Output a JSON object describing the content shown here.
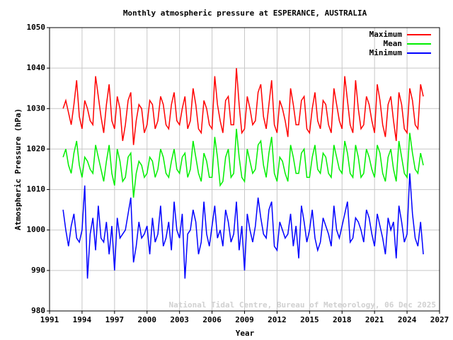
{
  "chart_data": {
    "type": "line",
    "title": "Monthly atmospheric pressure at ESPERANCE, AUSTRALIA",
    "xlabel": "Year",
    "ylabel": "Atmospheric Pressure (hPa)",
    "annotation": "National Tidal Centre, Bureau of Meteorology, 06 Dec 2025",
    "x": [
      1992.25,
      1992.5,
      1992.75,
      1993,
      1993.25,
      1993.5,
      1993.75,
      1994,
      1994.25,
      1994.5,
      1994.75,
      1995,
      1995.25,
      1995.5,
      1995.75,
      1996,
      1996.25,
      1996.5,
      1996.75,
      1997,
      1997.25,
      1997.5,
      1997.75,
      1998,
      1998.25,
      1998.5,
      1998.75,
      1999,
      1999.25,
      1999.5,
      1999.75,
      2000,
      2000.25,
      2000.5,
      2000.75,
      2001,
      2001.25,
      2001.5,
      2001.75,
      2002,
      2002.25,
      2002.5,
      2002.75,
      2003,
      2003.25,
      2003.5,
      2003.75,
      2004,
      2004.25,
      2004.5,
      2004.75,
      2005,
      2005.25,
      2005.5,
      2005.75,
      2006,
      2006.25,
      2006.5,
      2006.75,
      2007,
      2007.25,
      2007.5,
      2007.75,
      2008,
      2008.25,
      2008.5,
      2008.75,
      2009,
      2009.25,
      2009.5,
      2009.75,
      2010,
      2010.25,
      2010.5,
      2010.75,
      2011,
      2011.25,
      2011.5,
      2011.75,
      2012,
      2012.25,
      2012.5,
      2012.75,
      2013,
      2013.25,
      2013.5,
      2013.75,
      2014,
      2014.25,
      2014.5,
      2014.75,
      2015,
      2015.25,
      2015.5,
      2015.75,
      2016,
      2016.25,
      2016.5,
      2016.75,
      2017,
      2017.25,
      2017.5,
      2017.75,
      2018,
      2018.25,
      2018.5,
      2018.75,
      2019,
      2019.25,
      2019.5,
      2019.75,
      2020,
      2020.25,
      2020.5,
      2020.75,
      2021,
      2021.25,
      2021.5,
      2021.75,
      2022,
      2022.25,
      2022.5,
      2022.75,
      2023,
      2023.25,
      2023.5,
      2023.75,
      2024,
      2024.25,
      2024.5,
      2024.75,
      2025,
      2025.25,
      2025.5
    ],
    "series": [
      {
        "name": "Maximum",
        "color": "#ff0000",
        "values": [
          1030,
          1032,
          1029,
          1026,
          1031,
          1037,
          1028,
          1025,
          1032,
          1030,
          1027,
          1026,
          1038,
          1033,
          1028,
          1024,
          1031,
          1036,
          1027,
          1025,
          1033,
          1030,
          1022,
          1026,
          1032,
          1034,
          1021,
          1027,
          1031,
          1030,
          1024,
          1026,
          1032,
          1031,
          1025,
          1027,
          1033,
          1031,
          1026,
          1025,
          1031,
          1034,
          1027,
          1026,
          1030,
          1033,
          1025,
          1027,
          1035,
          1031,
          1025,
          1024,
          1032,
          1030,
          1026,
          1025,
          1038,
          1031,
          1027,
          1024,
          1032,
          1033,
          1026,
          1026,
          1040,
          1031,
          1024,
          1025,
          1033,
          1030,
          1026,
          1027,
          1034,
          1036,
          1028,
          1025,
          1031,
          1037,
          1026,
          1024,
          1032,
          1030,
          1027,
          1023,
          1035,
          1031,
          1026,
          1026,
          1032,
          1033,
          1025,
          1024,
          1030,
          1034,
          1027,
          1025,
          1032,
          1031,
          1026,
          1024,
          1035,
          1031,
          1027,
          1025,
          1038,
          1032,
          1026,
          1024,
          1037,
          1030,
          1025,
          1026,
          1033,
          1031,
          1027,
          1024,
          1036,
          1032,
          1026,
          1023,
          1031,
          1033,
          1027,
          1022,
          1034,
          1031,
          1025,
          1024,
          1035,
          1032,
          1026,
          1025,
          1036,
          1033
        ]
      },
      {
        "name": "Mean",
        "color": "#00ee00",
        "values": [
          1018,
          1020,
          1016,
          1014,
          1019,
          1022,
          1016,
          1013,
          1018,
          1017,
          1015,
          1014,
          1021,
          1018,
          1015,
          1012,
          1017,
          1021,
          1014,
          1011,
          1020,
          1017,
          1012,
          1013,
          1018,
          1019,
          1008,
          1014,
          1017,
          1016,
          1013,
          1014,
          1018,
          1017,
          1013,
          1015,
          1020,
          1018,
          1014,
          1013,
          1017,
          1020,
          1015,
          1014,
          1018,
          1019,
          1013,
          1015,
          1022,
          1018,
          1014,
          1012,
          1019,
          1017,
          1013,
          1013,
          1023,
          1018,
          1011,
          1012,
          1018,
          1020,
          1013,
          1014,
          1025,
          1018,
          1013,
          1012,
          1020,
          1017,
          1014,
          1015,
          1021,
          1022,
          1016,
          1013,
          1019,
          1023,
          1014,
          1012,
          1018,
          1017,
          1014,
          1012,
          1021,
          1018,
          1014,
          1014,
          1019,
          1020,
          1013,
          1013,
          1018,
          1021,
          1015,
          1014,
          1019,
          1018,
          1014,
          1013,
          1021,
          1018,
          1015,
          1014,
          1022,
          1019,
          1014,
          1013,
          1021,
          1018,
          1013,
          1014,
          1020,
          1018,
          1015,
          1013,
          1021,
          1019,
          1014,
          1012,
          1018,
          1020,
          1015,
          1012,
          1022,
          1018,
          1014,
          1013,
          1024,
          1019,
          1015,
          1014,
          1019,
          1016
        ]
      },
      {
        "name": "Minimum",
        "color": "#0000ff",
        "values": [
          1005,
          1000,
          996,
          1001,
          1004,
          998,
          997,
          1000,
          1011,
          988,
          999,
          1003,
          995,
          1006,
          998,
          997,
          1002,
          994,
          1001,
          990,
          1003,
          998,
          999,
          1000,
          1004,
          1008,
          992,
          996,
          1002,
          998,
          999,
          1001,
          994,
          1003,
          997,
          999,
          1006,
          996,
          998,
          1002,
          995,
          1007,
          1000,
          998,
          1004,
          988,
          999,
          1000,
          1005,
          1002,
          994,
          997,
          1007,
          999,
          996,
          1001,
          1006,
          998,
          1000,
          996,
          1005,
          1002,
          997,
          999,
          1007,
          995,
          1001,
          990,
          1004,
          1000,
          997,
          1001,
          1008,
          1003,
          999,
          998,
          1005,
          1007,
          996,
          995,
          1002,
          1000,
          998,
          999,
          1004,
          996,
          1001,
          993,
          1006,
          1002,
          997,
          1000,
          1005,
          998,
          995,
          997,
          1003,
          1001,
          999,
          996,
          1006,
          1000,
          998,
          1001,
          1004,
          1007,
          997,
          998,
          1003,
          1002,
          1000,
          997,
          1005,
          1003,
          999,
          996,
          1004,
          1001,
          998,
          994,
          1003,
          1000,
          1002,
          993,
          1006,
          1002,
          997,
          999,
          1014,
          1004,
          998,
          996,
          1002,
          994
        ]
      }
    ],
    "xlim": [
      1991,
      2027
    ],
    "ylim": [
      980,
      1050
    ],
    "xticks": [
      1991,
      1994,
      1997,
      2000,
      2003,
      2006,
      2009,
      2012,
      2015,
      2018,
      2021,
      2024,
      2027
    ],
    "yticks": [
      980,
      990,
      1000,
      1010,
      1020,
      1030,
      1040,
      1050
    ],
    "grid": true,
    "legend": "upper right"
  }
}
